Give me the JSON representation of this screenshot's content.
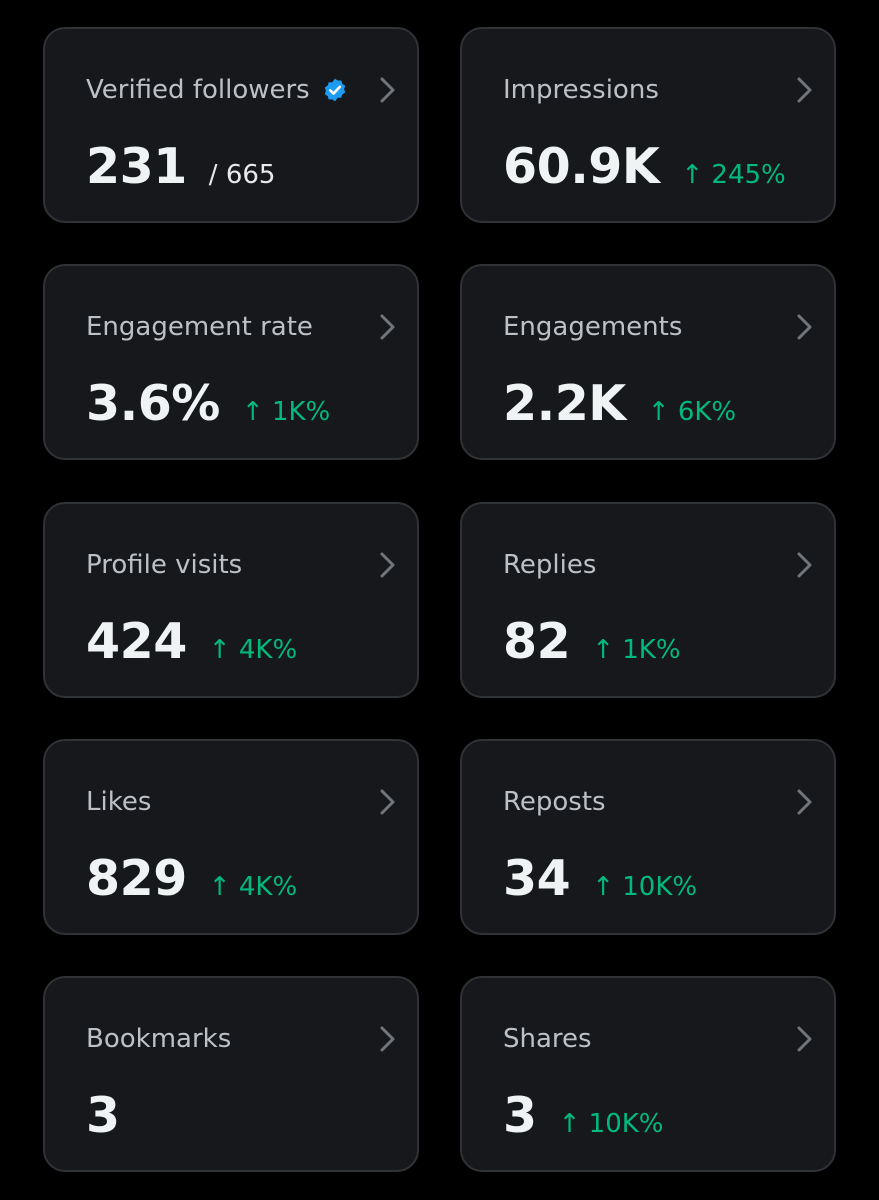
{
  "metrics": [
    {
      "label": "Verified followers",
      "value": "231",
      "total": "/ 665",
      "change": "",
      "icon": "verified-badge-icon"
    },
    {
      "label": "Impressions",
      "value": "60.9K",
      "total": "",
      "change": "↑ 245%"
    },
    {
      "label": "Engagement rate",
      "value": "3.6%",
      "total": "",
      "change": "↑ 1K%"
    },
    {
      "label": "Engagements",
      "value": "2.2K",
      "total": "",
      "change": "↑ 6K%"
    },
    {
      "label": "Profile visits",
      "value": "424",
      "total": "",
      "change": "↑ 4K%"
    },
    {
      "label": "Replies",
      "value": "82",
      "total": "",
      "change": "↑ 1K%"
    },
    {
      "label": "Likes",
      "value": "829",
      "total": "",
      "change": "↑ 4K%"
    },
    {
      "label": "Reposts",
      "value": "34",
      "total": "",
      "change": "↑ 10K%"
    },
    {
      "label": "Bookmarks",
      "value": "3",
      "total": "",
      "change": ""
    },
    {
      "label": "Shares",
      "value": "3",
      "total": "",
      "change": "↑ 10K%"
    }
  ],
  "colors": {
    "background": "#000000",
    "card": "#16181c",
    "border": "#2f3336",
    "positive": "#00ba7c",
    "verified": "#1d9bf0"
  },
  "icons": {
    "chevron": "chevron-right-icon",
    "verified": "verified-badge-icon"
  }
}
